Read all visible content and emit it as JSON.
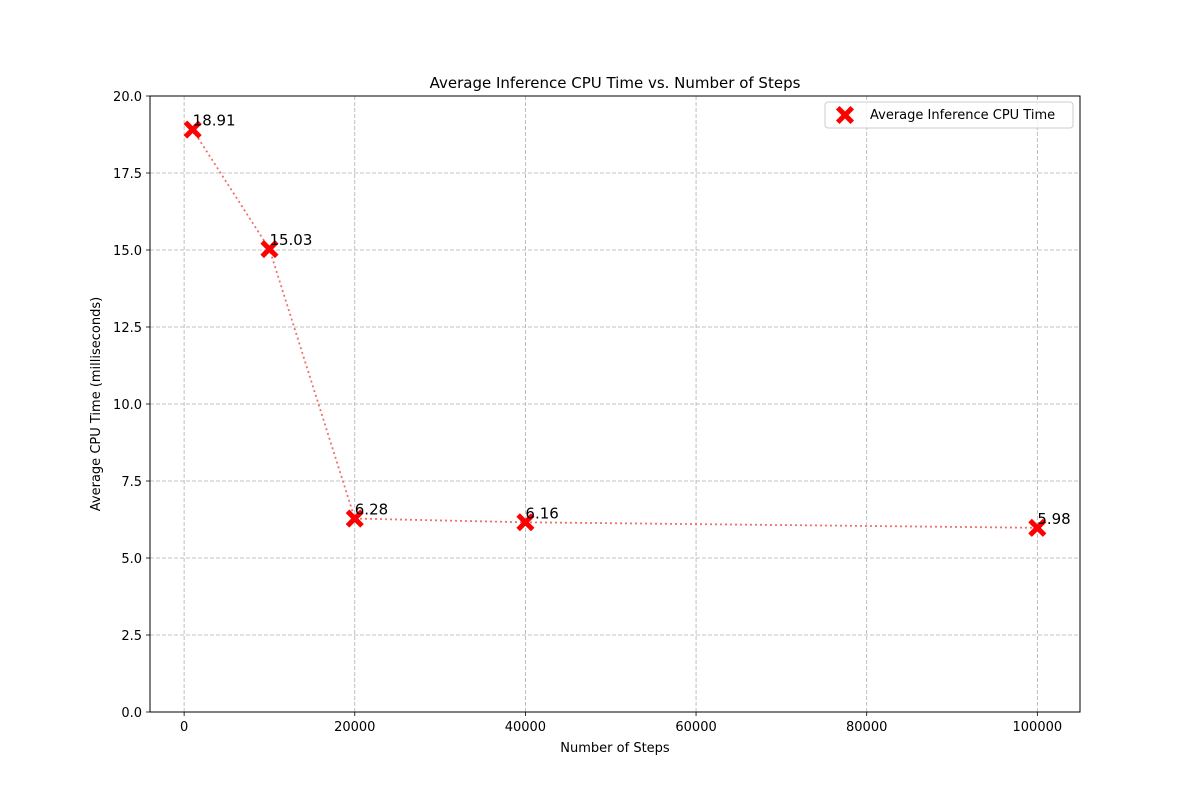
{
  "chart_data": {
    "type": "scatter",
    "title": "Average Inference CPU Time vs. Number of Steps",
    "xlabel": "Number of Steps",
    "ylabel": "Average CPU Time (milliseconds)",
    "xlim": [
      -4000,
      105000
    ],
    "ylim": [
      0,
      20
    ],
    "x_ticks": [
      0,
      20000,
      40000,
      60000,
      80000,
      100000
    ],
    "x_tick_labels": [
      "0",
      "20000",
      "40000",
      "60000",
      "80000",
      "100000"
    ],
    "y_ticks": [
      0,
      2.5,
      5,
      7.5,
      10,
      12.5,
      15,
      17.5,
      20
    ],
    "y_tick_labels": [
      "0.0",
      "2.5",
      "5.0",
      "7.5",
      "10.0",
      "12.5",
      "15.0",
      "17.5",
      "20.0"
    ],
    "grid": true,
    "legend_position": "top-right",
    "series": [
      {
        "name": "Average Inference CPU Time",
        "color": "#ff0000",
        "line_color": "#f0706a",
        "marker": "x",
        "x": [
          1000,
          10000,
          20000,
          40000,
          100000
        ],
        "y": [
          18.91,
          15.03,
          6.28,
          6.16,
          5.98
        ],
        "labels": [
          "18.91",
          "15.03",
          "6.28",
          "6.16",
          "5.98"
        ]
      }
    ]
  }
}
